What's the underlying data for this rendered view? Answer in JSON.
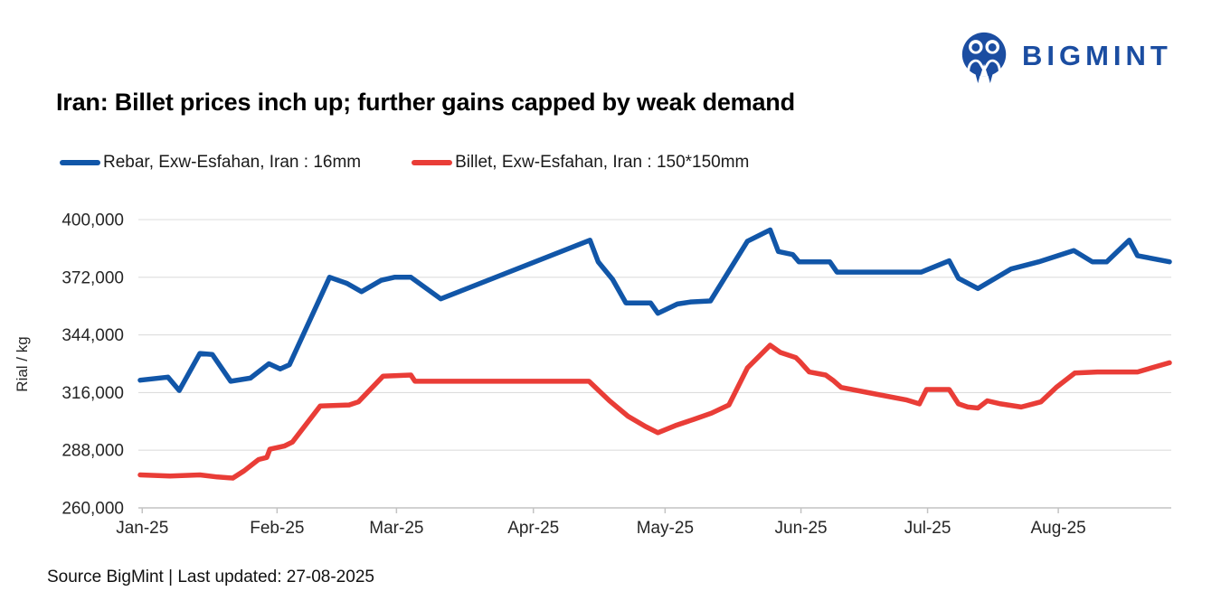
{
  "header": {
    "brand": "BIGMINT",
    "brand_color": "#1B4DA1"
  },
  "title": "Iran: Billet prices inch up; further gains capped by weak demand",
  "legend": [
    {
      "label": "Rebar, Exw-Esfahan, Iran : 16mm",
      "color": "#1156A8"
    },
    {
      "label": "Billet, Exw-Esfahan, Iran : 150*150mm",
      "color": "#E93D37"
    }
  ],
  "footer": {
    "text": "Source BigMint | Last updated: 27-08-2025"
  },
  "chart_data": {
    "type": "line",
    "title": "Iran: Billet prices inch up; further gains capped by weak demand",
    "xlabel": "",
    "ylabel": "Rial / kg",
    "ylim": [
      260000,
      400000
    ],
    "yticks": [
      260000,
      288000,
      316000,
      344000,
      372000,
      400000
    ],
    "ytick_labels": [
      "260,000",
      "288,000",
      "316,000",
      "344,000",
      "372,000",
      "400,000"
    ],
    "grid": "horizontal",
    "grid_color": "#DDDDDD",
    "axis_color": "#C3C3C3",
    "tick_color": "#262626",
    "legend_position": "top-left",
    "x_axis": {
      "unit": "month",
      "ticks": [
        {
          "label": "Jan-25",
          "pos": 0.002
        },
        {
          "label": "Feb-25",
          "pos": 0.133
        },
        {
          "label": "Mar-25",
          "pos": 0.249
        },
        {
          "label": "Apr-25",
          "pos": 0.382
        },
        {
          "label": "May-25",
          "pos": 0.51
        },
        {
          "label": "Jun-25",
          "pos": 0.642
        },
        {
          "label": "Jul-25",
          "pos": 0.765
        },
        {
          "label": "Aug-25",
          "pos": 0.892
        }
      ]
    },
    "series": [
      {
        "id": "rebar",
        "name": "Rebar, Exw-Esfahan, Iran : 16mm",
        "color": "#1156A8",
        "unit": "Rial/kg",
        "points": [
          [
            0.0,
            322000
          ],
          [
            0.027,
            323500
          ],
          [
            0.038,
            317000
          ],
          [
            0.058,
            335000
          ],
          [
            0.07,
            334500
          ],
          [
            0.088,
            321500
          ],
          [
            0.107,
            323000
          ],
          [
            0.125,
            330000
          ],
          [
            0.136,
            327500
          ],
          [
            0.145,
            329500
          ],
          [
            0.184,
            372000
          ],
          [
            0.201,
            369000
          ],
          [
            0.215,
            365000
          ],
          [
            0.234,
            370500
          ],
          [
            0.247,
            372000
          ],
          [
            0.263,
            372000
          ],
          [
            0.292,
            361500
          ],
          [
            0.437,
            390000
          ],
          [
            0.445,
            379500
          ],
          [
            0.459,
            371000
          ],
          [
            0.472,
            359500
          ],
          [
            0.496,
            359500
          ],
          [
            0.503,
            354500
          ],
          [
            0.522,
            359000
          ],
          [
            0.535,
            360000
          ],
          [
            0.554,
            360500
          ],
          [
            0.59,
            389500
          ],
          [
            0.612,
            395000
          ],
          [
            0.62,
            384500
          ],
          [
            0.634,
            383000
          ],
          [
            0.64,
            379500
          ],
          [
            0.67,
            379500
          ],
          [
            0.677,
            374500
          ],
          [
            0.759,
            374500
          ],
          [
            0.786,
            380000
          ],
          [
            0.795,
            371500
          ],
          [
            0.814,
            366500
          ],
          [
            0.846,
            376000
          ],
          [
            0.873,
            379500
          ],
          [
            0.907,
            385000
          ],
          [
            0.925,
            379500
          ],
          [
            0.939,
            379500
          ],
          [
            0.961,
            390000
          ],
          [
            0.969,
            382500
          ],
          [
            1.0,
            379500
          ]
        ]
      },
      {
        "id": "billet",
        "name": "Billet, Exw-Esfahan, Iran : 150*150mm",
        "color": "#E93D37",
        "unit": "Rial/kg",
        "points": [
          [
            0.0,
            276000
          ],
          [
            0.029,
            275500
          ],
          [
            0.058,
            276000
          ],
          [
            0.075,
            275000
          ],
          [
            0.09,
            274500
          ],
          [
            0.101,
            278000
          ],
          [
            0.115,
            283500
          ],
          [
            0.123,
            284500
          ],
          [
            0.126,
            288500
          ],
          [
            0.14,
            290000
          ],
          [
            0.148,
            292000
          ],
          [
            0.175,
            309500
          ],
          [
            0.203,
            310000
          ],
          [
            0.212,
            311500
          ],
          [
            0.236,
            324000
          ],
          [
            0.263,
            324500
          ],
          [
            0.267,
            321500
          ],
          [
            0.436,
            321500
          ],
          [
            0.456,
            312000
          ],
          [
            0.474,
            304500
          ],
          [
            0.491,
            299500
          ],
          [
            0.503,
            296500
          ],
          [
            0.52,
            300000
          ],
          [
            0.538,
            303000
          ],
          [
            0.555,
            306000
          ],
          [
            0.572,
            310000
          ],
          [
            0.59,
            328000
          ],
          [
            0.602,
            334000
          ],
          [
            0.612,
            339000
          ],
          [
            0.622,
            335500
          ],
          [
            0.637,
            333000
          ],
          [
            0.641,
            331000
          ],
          [
            0.65,
            326000
          ],
          [
            0.666,
            324500
          ],
          [
            0.673,
            322000
          ],
          [
            0.681,
            318500
          ],
          [
            0.712,
            315500
          ],
          [
            0.744,
            312500
          ],
          [
            0.757,
            310500
          ],
          [
            0.764,
            317500
          ],
          [
            0.786,
            317500
          ],
          [
            0.795,
            310500
          ],
          [
            0.804,
            309000
          ],
          [
            0.814,
            308500
          ],
          [
            0.823,
            312000
          ],
          [
            0.836,
            310500
          ],
          [
            0.856,
            309000
          ],
          [
            0.875,
            311500
          ],
          [
            0.89,
            318500
          ],
          [
            0.908,
            325500
          ],
          [
            0.93,
            326000
          ],
          [
            0.969,
            326000
          ],
          [
            1.0,
            330500
          ]
        ]
      }
    ]
  }
}
